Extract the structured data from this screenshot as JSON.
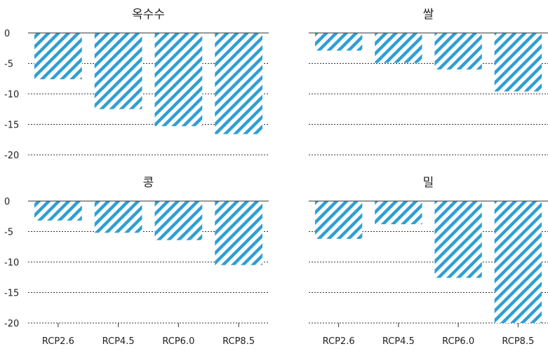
{
  "chart_data": [
    {
      "type": "bar",
      "title": "옥수수",
      "categories": [
        "RCP2.6",
        "RCP4.5",
        "RCP6.0",
        "RCP8.5"
      ],
      "values": [
        -7.6,
        -12.5,
        -15.3,
        -16.6
      ],
      "ylim": [
        -20,
        0
      ],
      "yticks": [
        0,
        -5,
        -10,
        -15,
        -20
      ],
      "grid": true
    },
    {
      "type": "bar",
      "title": "쌀",
      "categories": [
        "RCP2.6",
        "RCP4.5",
        "RCP6.0",
        "RCP8.5"
      ],
      "values": [
        -2.9,
        -4.9,
        -6.0,
        -9.6
      ],
      "ylim": [
        -20,
        0
      ],
      "yticks": [
        0,
        -5,
        -10,
        -15,
        -20
      ],
      "grid": true
    },
    {
      "type": "bar",
      "title": "콩",
      "categories": [
        "RCP2.6",
        "RCP4.5",
        "RCP6.0",
        "RCP8.5"
      ],
      "values": [
        -3.2,
        -5.2,
        -6.4,
        -10.5
      ],
      "ylim": [
        -20,
        0
      ],
      "yticks": [
        0,
        -5,
        -10,
        -15,
        -20
      ],
      "grid": true
    },
    {
      "type": "bar",
      "title": "밀",
      "categories": [
        "RCP2.6",
        "RCP4.5",
        "RCP6.0",
        "RCP8.5"
      ],
      "values": [
        -6.2,
        -3.8,
        -12.6,
        -20.1
      ],
      "ylim": [
        -20,
        0
      ],
      "yticks": [
        0,
        -5,
        -10,
        -15,
        -20
      ],
      "grid": true
    }
  ],
  "style": {
    "bar_color": "#2f9fd4",
    "hatch": "diagonal-stripes"
  }
}
